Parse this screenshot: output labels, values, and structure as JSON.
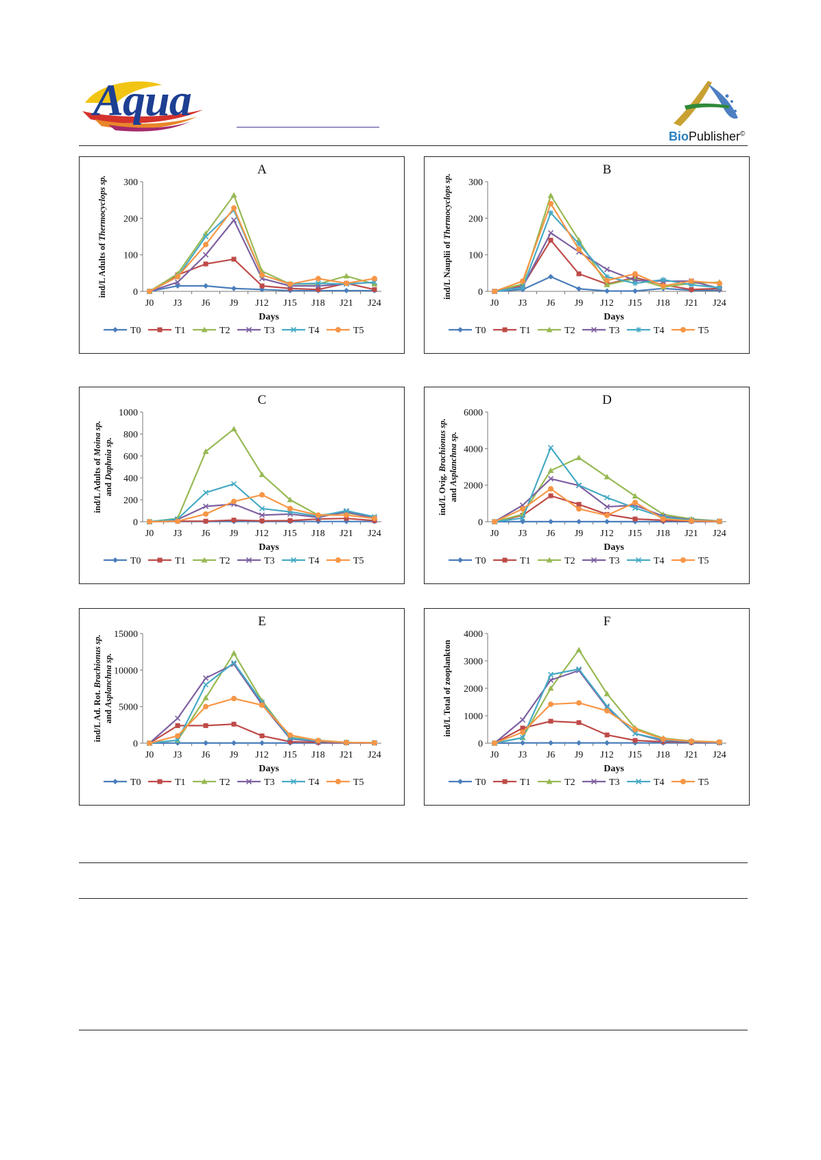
{
  "header": {
    "journal_logo_text": "Aqua",
    "publisher_logo_text_bio": "Bio",
    "publisher_logo_text_rest": "Publisher",
    "publisher_mark": "©"
  },
  "legend_labels": [
    "T0",
    "T1",
    "T2",
    "T3",
    "T4",
    "T5"
  ],
  "series_colors": {
    "T0": "#4a7ebb",
    "T1": "#be4b48",
    "T2": "#98b954",
    "T3": "#7d60a0",
    "T4": "#46aac5",
    "T5": "#f79646"
  },
  "chart_data": [
    {
      "type": "line",
      "title": "A",
      "xlabel": "Days",
      "ylabel": "ind/L Adults of Thermocyclops sp.",
      "categories": [
        "J0",
        "J3",
        "J6",
        "J9",
        "J12",
        "J15",
        "J18",
        "J21",
        "J24"
      ],
      "yticks": [
        "0",
        "100",
        "200",
        "300"
      ],
      "ylim": [
        0,
        300
      ],
      "legend_position": "bottom",
      "grid": false,
      "series": [
        {
          "name": "T0",
          "values": [
            0,
            15,
            15,
            8,
            5,
            2,
            2,
            2,
            2
          ]
        },
        {
          "name": "T1",
          "values": [
            0,
            45,
            75,
            88,
            15,
            8,
            5,
            22,
            5
          ]
        },
        {
          "name": "T2",
          "values": [
            0,
            48,
            158,
            263,
            55,
            20,
            20,
            42,
            20
          ]
        },
        {
          "name": "T3",
          "values": [
            0,
            25,
            100,
            195,
            35,
            15,
            15,
            20,
            25
          ]
        },
        {
          "name": "T4",
          "values": [
            0,
            40,
            150,
            222,
            45,
            20,
            22,
            20,
            25
          ]
        },
        {
          "name": "T5",
          "values": [
            0,
            40,
            128,
            228,
            45,
            20,
            35,
            22,
            35
          ]
        }
      ]
    },
    {
      "type": "line",
      "title": "B",
      "xlabel": "Days",
      "ylabel": "ind/L Nauplii of Thermocyclops sp.",
      "categories": [
        "J0",
        "J3",
        "J6",
        "J9",
        "J12",
        "J15",
        "J18",
        "J21",
        "J24"
      ],
      "yticks": [
        "0",
        "100",
        "200",
        "300"
      ],
      "ylim": [
        0,
        300
      ],
      "legend_position": "bottom",
      "grid": false,
      "series": [
        {
          "name": "T0",
          "values": [
            0,
            5,
            40,
            7,
            1,
            1,
            8,
            3,
            3
          ]
        },
        {
          "name": "T1",
          "values": [
            0,
            15,
            140,
            48,
            20,
            38,
            18,
            5,
            8
          ]
        },
        {
          "name": "T2",
          "values": [
            0,
            20,
            262,
            140,
            18,
            35,
            12,
            22,
            25
          ]
        },
        {
          "name": "T3",
          "values": [
            0,
            12,
            160,
            108,
            60,
            30,
            28,
            28,
            8
          ]
        },
        {
          "name": "T4",
          "values": [
            0,
            10,
            215,
            130,
            40,
            22,
            32,
            18,
            10
          ]
        },
        {
          "name": "T5",
          "values": [
            0,
            28,
            240,
            115,
            30,
            48,
            15,
            28,
            22
          ]
        }
      ]
    },
    {
      "type": "line",
      "title": "C",
      "xlabel": "Days",
      "ylabel": "ind/L Adults of Moina sp. and Daphnia sp.",
      "categories": [
        "J0",
        "J3",
        "J6",
        "J9",
        "J12",
        "J15",
        "J18",
        "J21",
        "J24"
      ],
      "yticks": [
        "0",
        "200",
        "400",
        "600",
        "800",
        "1000"
      ],
      "ylim": [
        0,
        1000
      ],
      "legend_position": "bottom",
      "grid": false,
      "series": [
        {
          "name": "T0",
          "values": [
            0,
            2,
            2,
            2,
            2,
            2,
            2,
            2,
            2
          ]
        },
        {
          "name": "T1",
          "values": [
            0,
            5,
            5,
            15,
            8,
            10,
            25,
            30,
            10
          ]
        },
        {
          "name": "T2",
          "values": [
            0,
            30,
            640,
            845,
            430,
            200,
            60,
            80,
            40
          ]
        },
        {
          "name": "T3",
          "values": [
            0,
            20,
            140,
            160,
            60,
            70,
            40,
            90,
            30
          ]
        },
        {
          "name": "T4",
          "values": [
            0,
            25,
            265,
            345,
            120,
            90,
            50,
            100,
            45
          ]
        },
        {
          "name": "T5",
          "values": [
            0,
            5,
            70,
            185,
            245,
            120,
            60,
            60,
            30
          ]
        }
      ]
    },
    {
      "type": "line",
      "title": "D",
      "xlabel": "Days",
      "ylabel": "ind/L Ovig. Brachionus sp. and Asplanchna sp.",
      "categories": [
        "J0",
        "J3",
        "J6",
        "J9",
        "J12",
        "J15",
        "J18",
        "J21",
        "J24"
      ],
      "yticks": [
        "0",
        "2000",
        "4000",
        "6000"
      ],
      "ylim": [
        0,
        6000
      ],
      "legend_position": "bottom",
      "grid": false,
      "series": [
        {
          "name": "T0",
          "values": [
            0,
            5,
            5,
            5,
            5,
            5,
            5,
            5,
            5
          ]
        },
        {
          "name": "T1",
          "values": [
            0,
            350,
            1420,
            950,
            400,
            150,
            80,
            30,
            10
          ]
        },
        {
          "name": "T2",
          "values": [
            0,
            400,
            2800,
            3500,
            2450,
            1400,
            400,
            150,
            40
          ]
        },
        {
          "name": "T3",
          "values": [
            0,
            900,
            2350,
            1980,
            820,
            900,
            300,
            100,
            30
          ]
        },
        {
          "name": "T4",
          "values": [
            0,
            200,
            4050,
            2000,
            1320,
            750,
            250,
            80,
            20
          ]
        },
        {
          "name": "T5",
          "values": [
            0,
            700,
            1800,
            700,
            350,
            1050,
            150,
            50,
            20
          ]
        }
      ]
    },
    {
      "type": "line",
      "title": "E",
      "xlabel": "Days",
      "ylabel": "ind/L Ad. Rot. Brachionus sp. and Asplanchna sp.",
      "categories": [
        "J0",
        "J3",
        "J6",
        "J9",
        "J12",
        "J15",
        "J18",
        "J21",
        "J24"
      ],
      "yticks": [
        "0",
        "5000",
        "10000",
        "15000"
      ],
      "ylim": [
        0,
        15000
      ],
      "legend_position": "bottom",
      "grid": false,
      "series": [
        {
          "name": "T0",
          "values": [
            0,
            20,
            20,
            20,
            20,
            20,
            20,
            20,
            20
          ]
        },
        {
          "name": "T1",
          "values": [
            0,
            2400,
            2400,
            2600,
            1000,
            200,
            100,
            50,
            30
          ]
        },
        {
          "name": "T2",
          "values": [
            0,
            400,
            6200,
            12300,
            5800,
            800,
            400,
            100,
            50
          ]
        },
        {
          "name": "T3",
          "values": [
            0,
            3400,
            8900,
            10800,
            5300,
            600,
            200,
            80,
            40
          ]
        },
        {
          "name": "T4",
          "values": [
            0,
            400,
            8000,
            11000,
            5600,
            700,
            300,
            100,
            50
          ]
        },
        {
          "name": "T5",
          "values": [
            0,
            1000,
            5000,
            6100,
            5200,
            1100,
            350,
            100,
            50
          ]
        }
      ]
    },
    {
      "type": "line",
      "title": "F",
      "xlabel": "Days",
      "ylabel": "ind/L Total of zooplankton",
      "categories": [
        "J0",
        "J3",
        "J6",
        "J9",
        "J12",
        "J15",
        "J18",
        "J21",
        "J24"
      ],
      "yticks": [
        "0",
        "1000",
        "2000",
        "3000",
        "4000"
      ],
      "ylim": [
        0,
        4000
      ],
      "legend_position": "bottom",
      "grid": false,
      "series": [
        {
          "name": "T0",
          "values": [
            0,
            10,
            10,
            10,
            10,
            10,
            10,
            10,
            10
          ]
        },
        {
          "name": "T1",
          "values": [
            0,
            550,
            800,
            750,
            300,
            100,
            50,
            30,
            20
          ]
        },
        {
          "name": "T2",
          "values": [
            0,
            200,
            2000,
            3400,
            1800,
            550,
            180,
            80,
            40
          ]
        },
        {
          "name": "T3",
          "values": [
            0,
            850,
            2300,
            2650,
            1300,
            350,
            80,
            50,
            20
          ]
        },
        {
          "name": "T4",
          "values": [
            0,
            200,
            2500,
            2700,
            1350,
            350,
            120,
            60,
            30
          ]
        },
        {
          "name": "T5",
          "values": [
            0,
            400,
            1420,
            1470,
            1180,
            500,
            150,
            70,
            40
          ]
        }
      ]
    }
  ]
}
